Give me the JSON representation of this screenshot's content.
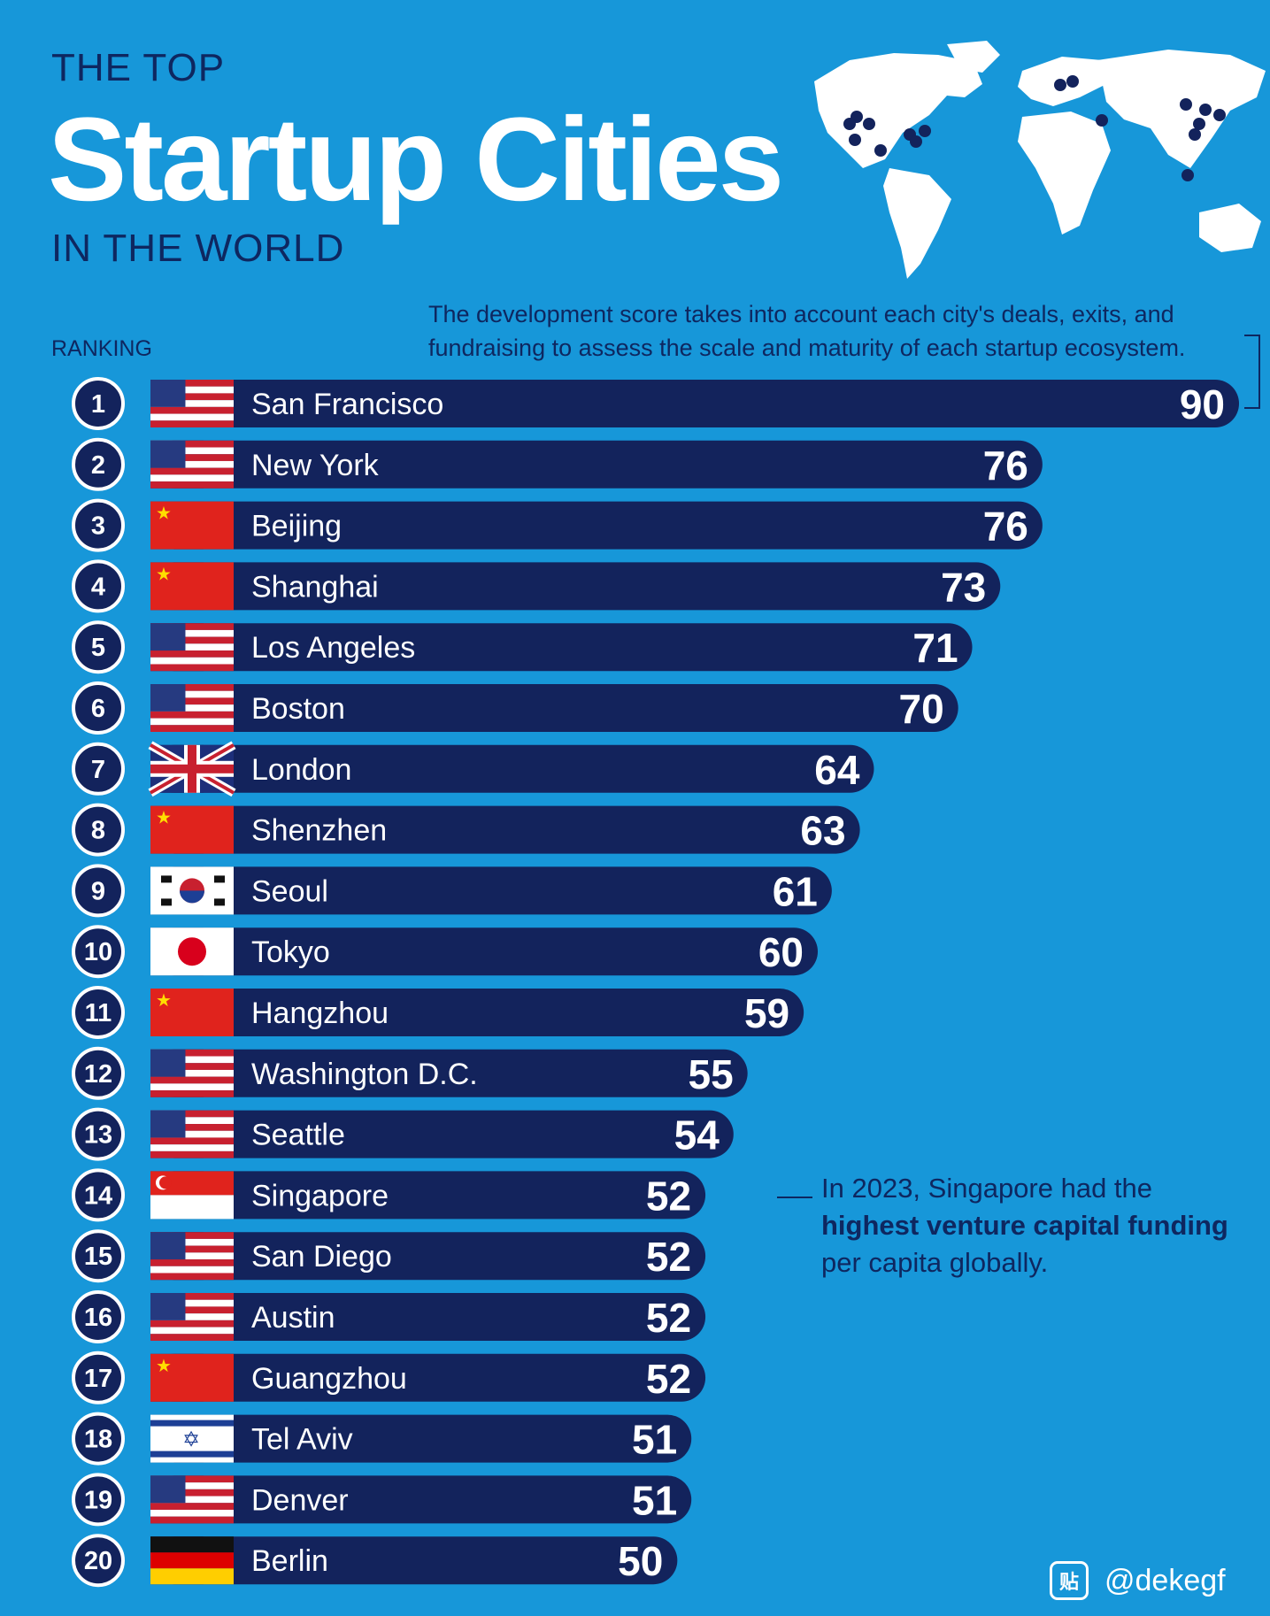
{
  "header": {
    "pre_title": "THE TOP",
    "title": "Startup Cities",
    "post_title": "IN THE WORLD"
  },
  "note": "The development score takes into account each city's deals, exits, and fundraising to assess the scale and maturity of each startup ecosystem.",
  "ranking_label": "RANKING",
  "callout": {
    "prefix": "In 2023, Singapore had the",
    "bold": "highest venture capital funding",
    "suffix": "per capita globally."
  },
  "watermark": {
    "icon": "贴",
    "handle": "@dekegf"
  },
  "colors": {
    "background": "#1797d9",
    "bar": "#13235c",
    "text_dark": "#0e2760",
    "white": "#ffffff"
  },
  "chart_data": {
    "type": "bar",
    "orientation": "horizontal",
    "categories": [
      "San Francisco",
      "New York",
      "Beijing",
      "Shanghai",
      "Los Angeles",
      "Boston",
      "London",
      "Shenzhen",
      "Seoul",
      "Tokyo",
      "Hangzhou",
      "Washington D.C.",
      "Seattle",
      "Singapore",
      "San Diego",
      "Austin",
      "Guangzhou",
      "Tel Aviv",
      "Denver",
      "Berlin"
    ],
    "ranks": [
      "1",
      "2",
      "3",
      "4",
      "5",
      "6",
      "7",
      "8",
      "9",
      "10",
      "11",
      "12",
      "13",
      "14",
      "15",
      "16",
      "17",
      "18",
      "19",
      "20"
    ],
    "values": [
      90,
      76,
      76,
      73,
      71,
      70,
      64,
      63,
      61,
      60,
      59,
      55,
      54,
      52,
      52,
      52,
      52,
      51,
      51,
      50
    ],
    "countries": [
      "us",
      "us",
      "cn",
      "cn",
      "us",
      "us",
      "uk",
      "cn",
      "kr",
      "jp",
      "cn",
      "us",
      "us",
      "sg",
      "us",
      "us",
      "cn",
      "il",
      "us",
      "de"
    ],
    "map_markers": "city dots on world map"
  }
}
